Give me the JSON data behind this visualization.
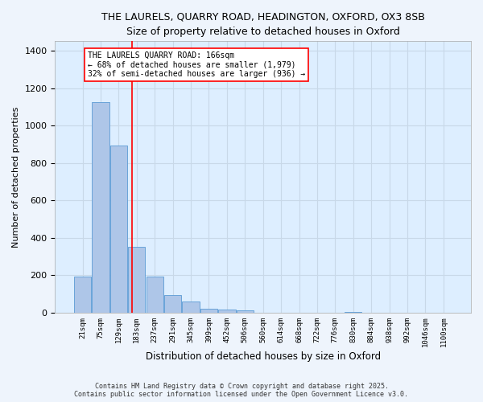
{
  "title1": "THE LAURELS, QUARRY ROAD, HEADINGTON, OXFORD, OX3 8SB",
  "title2": "Size of property relative to detached houses in Oxford",
  "xlabel": "Distribution of detached houses by size in Oxford",
  "ylabel": "Number of detached properties",
  "categories": [
    "21sqm",
    "75sqm",
    "129sqm",
    "183sqm",
    "237sqm",
    "291sqm",
    "345sqm",
    "399sqm",
    "452sqm",
    "506sqm",
    "560sqm",
    "614sqm",
    "668sqm",
    "722sqm",
    "776sqm",
    "830sqm",
    "884sqm",
    "938sqm",
    "992sqm",
    "1046sqm",
    "1100sqm"
  ],
  "values": [
    193,
    1125,
    893,
    350,
    195,
    95,
    58,
    22,
    18,
    12,
    0,
    0,
    0,
    0,
    0,
    3,
    0,
    0,
    0,
    0,
    0
  ],
  "bar_color": "#aec6e8",
  "bar_edge_color": "#5b9bd5",
  "grid_color": "#c8d8e8",
  "bg_color": "#ddeeff",
  "fig_color": "#eef4fc",
  "vline_x": 2.72,
  "vline_color": "red",
  "annotation_title": "THE LAURELS QUARRY ROAD: 166sqm",
  "annotation_line1": "← 68% of detached houses are smaller (1,979)",
  "annotation_line2": "32% of semi-detached houses are larger (936) →",
  "ylim": [
    0,
    1450
  ],
  "yticks": [
    0,
    200,
    400,
    600,
    800,
    1000,
    1200,
    1400
  ],
  "footer1": "Contains HM Land Registry data © Crown copyright and database right 2025.",
  "footer2": "Contains public sector information licensed under the Open Government Licence v3.0."
}
